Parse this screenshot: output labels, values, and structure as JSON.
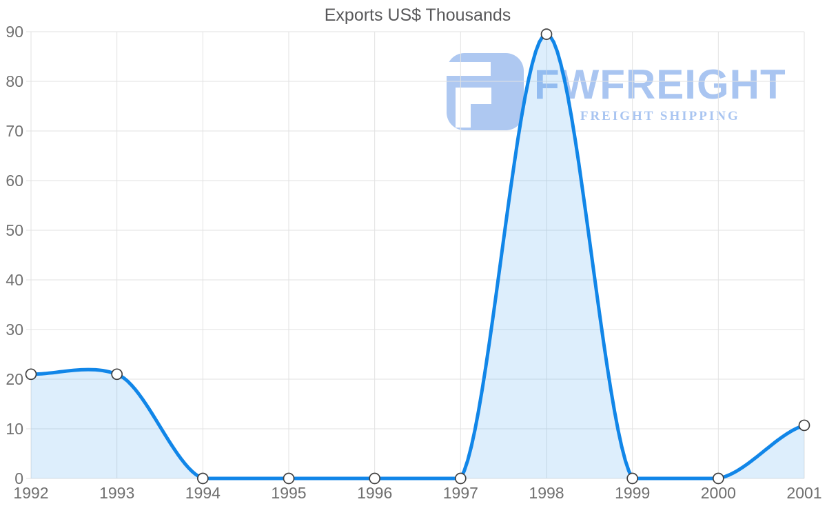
{
  "chart_data": {
    "type": "area",
    "title": "Exports US$ Thousands",
    "xlabel": "",
    "ylabel": "",
    "categories": [
      "1992",
      "1993",
      "1994",
      "1995",
      "1996",
      "1997",
      "1998",
      "1999",
      "2000",
      "2001"
    ],
    "series": [
      {
        "name": "Exports US$ Thousands",
        "values": [
          21,
          21,
          0,
          0,
          0,
          0,
          89.5,
          0,
          0,
          10.7
        ]
      }
    ],
    "ylim": [
      0,
      90
    ],
    "yticks": [
      0,
      10,
      20,
      30,
      40,
      50,
      60,
      70,
      80,
      90
    ],
    "grid": true,
    "legend": "none",
    "smoothing": "function-curve-clipped-at-zero",
    "line_color": "#1186e8",
    "area_fill": "rgba(17,134,232,0.14)",
    "marker": {
      "fill": "#ffffff",
      "stroke": "#404040",
      "radius": 7.5
    }
  },
  "watermark": {
    "brand": "FWFREIGHT",
    "tagline": "FREIGHT SHIPPING",
    "color": "#a9c5f1"
  },
  "colors": {
    "background": "#ffffff",
    "grid": "#e2e2e2",
    "tick_label": "#6f6f6f",
    "title": "#58585a"
  }
}
